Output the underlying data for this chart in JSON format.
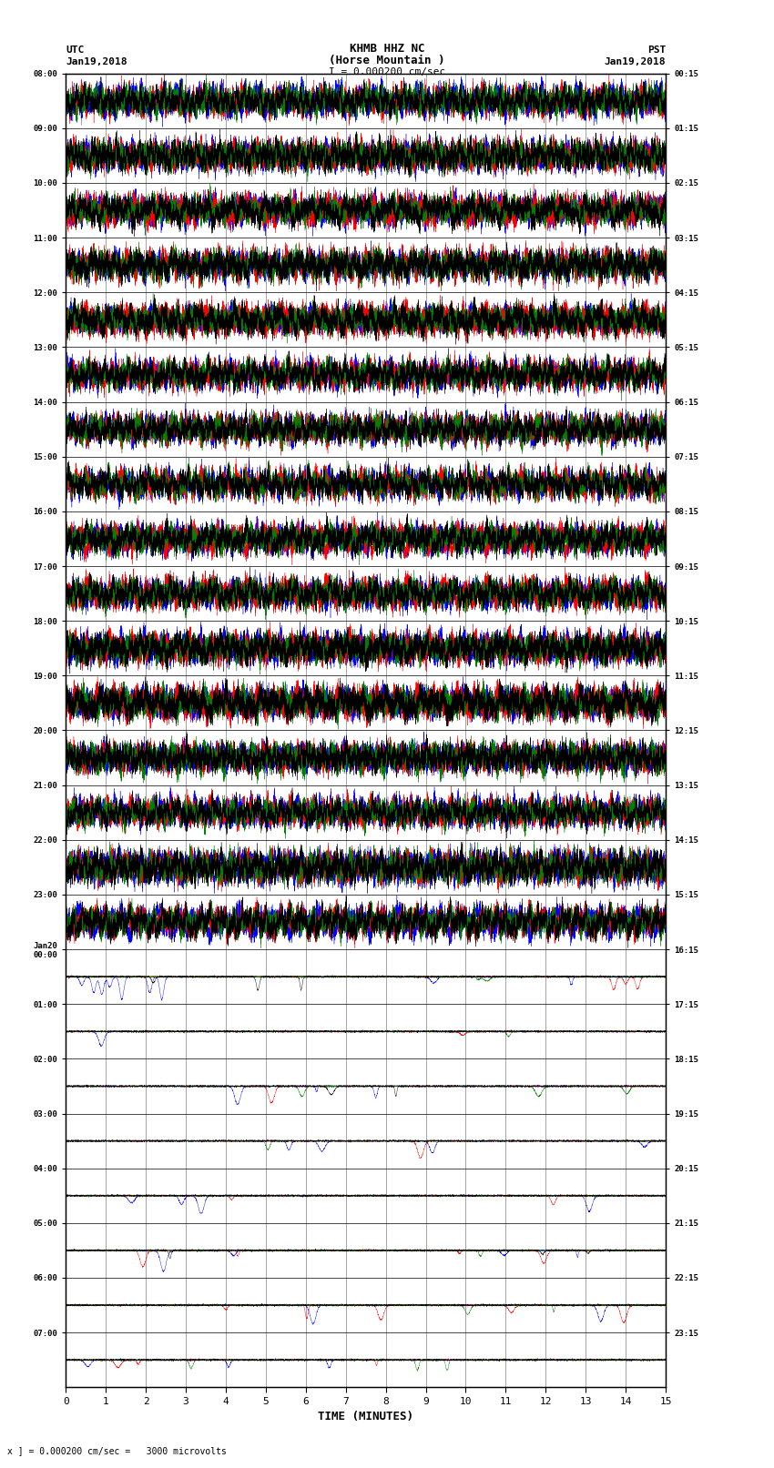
{
  "title_line1": "KHMB HHZ NC",
  "title_line2": "(Horse Mountain )",
  "title_line3": "I = 0.000200 cm/sec",
  "label_utc": "UTC",
  "label_pst": "PST",
  "date_left": "Jan19,2018",
  "date_right": "Jan19,2018",
  "xlabel": "TIME (MINUTES)",
  "footer": "x ] = 0.000200 cm/sec =   3000 microvolts",
  "left_yticks_labels": [
    "08:00",
    "09:00",
    "10:00",
    "11:00",
    "12:00",
    "13:00",
    "14:00",
    "15:00",
    "16:00",
    "17:00",
    "18:00",
    "19:00",
    "20:00",
    "21:00",
    "22:00",
    "23:00",
    "Jan20\n00:00",
    "01:00",
    "02:00",
    "03:00",
    "04:00",
    "05:00",
    "06:00",
    "07:00"
  ],
  "right_yticks_labels": [
    "00:15",
    "01:15",
    "02:15",
    "03:15",
    "04:15",
    "05:15",
    "06:15",
    "07:15",
    "08:15",
    "09:15",
    "10:15",
    "11:15",
    "12:15",
    "13:15",
    "14:15",
    "15:15",
    "16:15",
    "17:15",
    "18:15",
    "19:15",
    "20:15",
    "21:15",
    "22:15",
    "23:15"
  ],
  "xticks": [
    0,
    1,
    2,
    3,
    4,
    5,
    6,
    7,
    8,
    9,
    10,
    11,
    12,
    13,
    14,
    15
  ],
  "num_rows": 24,
  "noisy_rows": 16,
  "quiet_rows": 8,
  "bg_color": "#ffffff",
  "grid_color": "#808080",
  "figwidth": 8.5,
  "figheight": 16.13,
  "dpi": 100
}
